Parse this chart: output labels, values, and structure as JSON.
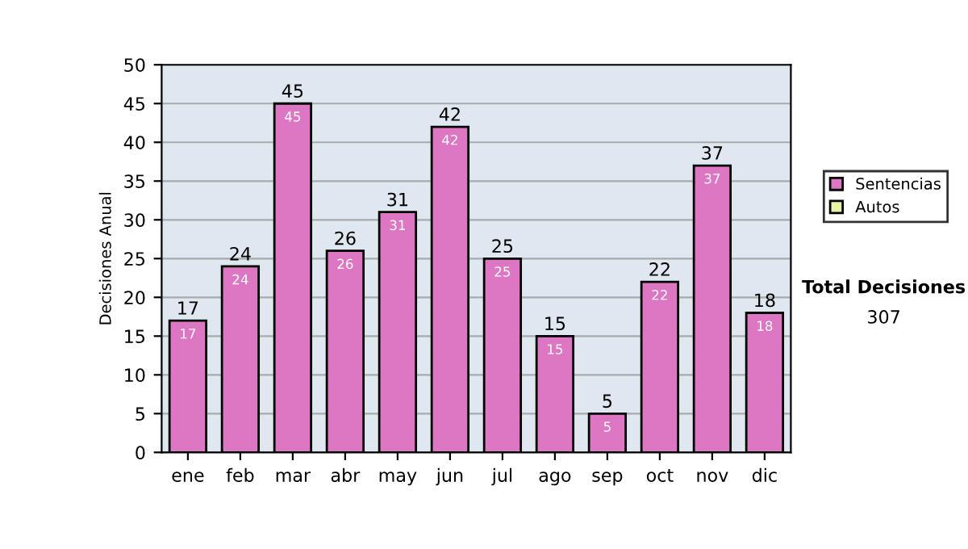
{
  "chart_data": {
    "type": "bar",
    "ylabel": "Decisiones Anual",
    "categories": [
      "ene",
      "feb",
      "mar",
      "abr",
      "may",
      "jun",
      "jul",
      "ago",
      "sep",
      "oct",
      "nov",
      "dic"
    ],
    "series": [
      {
        "name": "Sentencias",
        "color": "#dd77c4",
        "values": [
          17,
          24,
          45,
          26,
          31,
          42,
          25,
          15,
          5,
          22,
          37,
          18
        ]
      },
      {
        "name": "Autos",
        "color": "#e6f2a6",
        "values": [
          null,
          null,
          null,
          null,
          null,
          null,
          null,
          null,
          null,
          null,
          null,
          null
        ]
      }
    ],
    "stacked": true,
    "ylim": [
      0,
      50
    ],
    "yticks": [
      0,
      5,
      10,
      15,
      20,
      25,
      30,
      35,
      40,
      45,
      50
    ],
    "grid": "y",
    "legend": "right",
    "data_labels": true,
    "totals": [
      "17",
      "24",
      "45",
      "26",
      "31",
      "42",
      "25",
      "15",
      "5",
      "22",
      "37",
      "18"
    ],
    "annotations": [
      "Total Decisiones",
      "307"
    ]
  }
}
